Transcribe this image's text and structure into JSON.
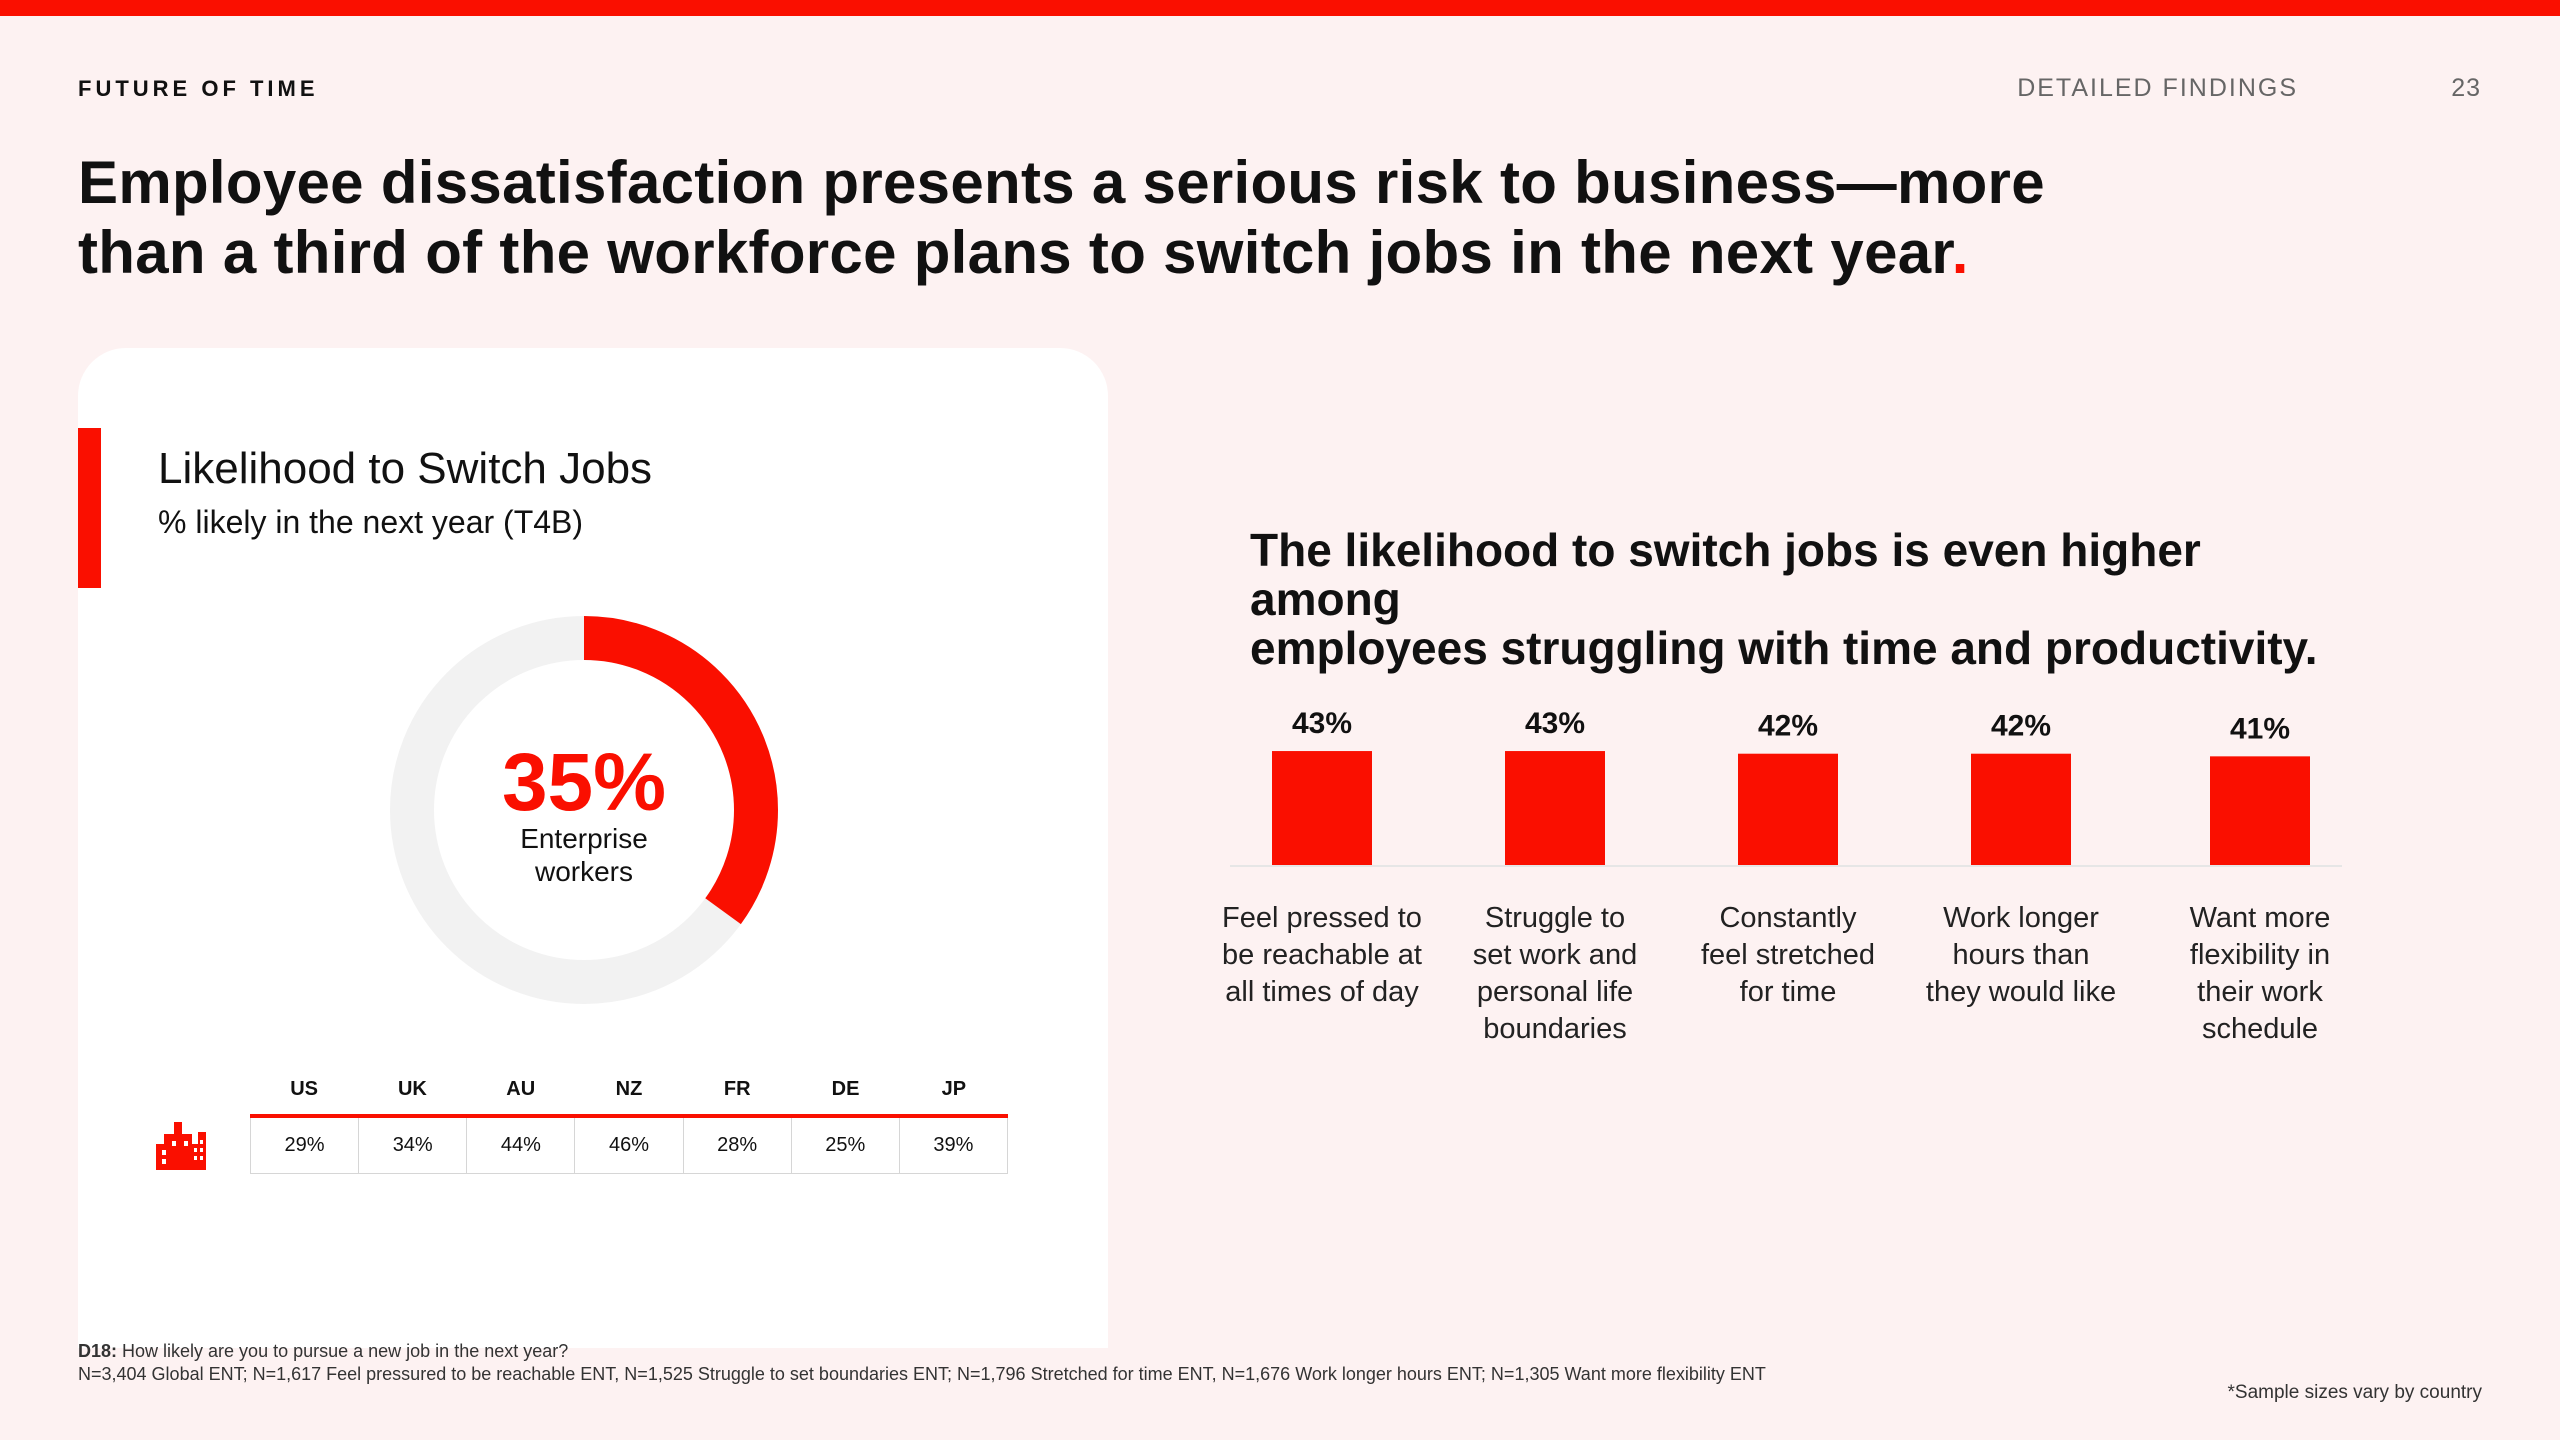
{
  "header": {
    "brand": "FUTURE OF TIME",
    "section": "DETAILED FINDINGS",
    "page_number": "23"
  },
  "headline": {
    "line1": "Employee dissatisfaction presents a serious risk to business—more",
    "line2": "than a third of the workforce plans to switch jobs in the next year",
    "end_mark": "."
  },
  "left_card": {
    "title": "Likelihood to Switch Jobs",
    "subtitle": "% likely in the next year (T4B)",
    "icon": "office-building-icon"
  },
  "right_panel": {
    "heading_line1": "The likelihood to switch jobs is even higher among",
    "heading_line2": "employees struggling with time and productivity."
  },
  "colors": {
    "accent": "#fa0f00",
    "track": "#f2f2f2",
    "background": "#fdf2f2",
    "card": "#ffffff"
  },
  "chart_data": [
    {
      "type": "pie",
      "variant": "donut",
      "value": 35,
      "value_label": "35%",
      "center_label_line1": "Enterprise",
      "center_label_line2": "workers",
      "max": 100
    },
    {
      "type": "table",
      "columns": [
        "US",
        "UK",
        "AU",
        "NZ",
        "FR",
        "DE",
        "JP"
      ],
      "values": [
        "29%",
        "34%",
        "44%",
        "46%",
        "28%",
        "25%",
        "39%"
      ]
    },
    {
      "type": "bar",
      "categories": [
        [
          "Feel pressed to",
          "be reachable at",
          "all times of day"
        ],
        [
          "Struggle to",
          "set work and",
          "personal life",
          "boundaries"
        ],
        [
          "Constantly",
          "feel stretched",
          "for time"
        ],
        [
          "Work longer",
          "hours than",
          "they would like"
        ],
        [
          "Want more",
          "flexibility in",
          "their work",
          "schedule"
        ]
      ],
      "values": [
        43,
        43,
        42,
        42,
        41
      ],
      "value_labels": [
        "43%",
        "43%",
        "42%",
        "42%",
        "41%"
      ],
      "ylim": [
        0,
        100
      ],
      "grid": false
    }
  ],
  "footer": {
    "question_label": "D18:",
    "question_text": " How likely are you to pursue a new job in the next year?",
    "sample_text": "N=3,404 Global ENT; N=1,617 Feel pressured to be reachable ENT, N=1,525 Struggle to set boundaries ENT; N=1,796 Stretched for time ENT, N=1,676 Work longer hours ENT; N=1,305 Want more flexibility ENT",
    "sample_note": "*Sample sizes vary by country"
  }
}
